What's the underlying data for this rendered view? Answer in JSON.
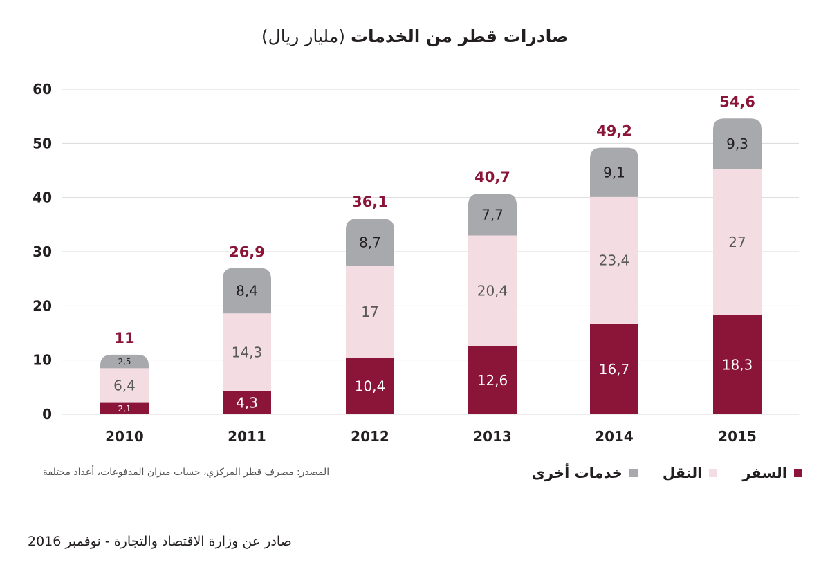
{
  "chart_data": {
    "type": "bar",
    "stacked": true,
    "title": "صادرات قطر من الخدمات",
    "title_unit": "(مليار ريال)",
    "categories": [
      "2010",
      "2011",
      "2012",
      "2013",
      "2014",
      "2015"
    ],
    "series": [
      {
        "name": "السفر",
        "color": "#8b1538",
        "values": [
          2.1,
          4.3,
          10.4,
          12.6,
          16.7,
          18.3
        ],
        "labels": [
          "2,1",
          "4,3",
          "10,4",
          "12,6",
          "16,7",
          "18,3"
        ]
      },
      {
        "name": "النقل",
        "color": "#f3dde3",
        "values": [
          6.4,
          14.3,
          17,
          20.4,
          23.4,
          27
        ],
        "labels": [
          "6,4",
          "14,3",
          "17",
          "20,4",
          "23,4",
          "27"
        ]
      },
      {
        "name": "خدمات أخرى",
        "color": "#a7a9ac",
        "values": [
          2.5,
          8.4,
          8.7,
          7.7,
          9.1,
          9.3
        ],
        "labels": [
          "2,5",
          "8,4",
          "8,7",
          "7,7",
          "9,1",
          "9,3"
        ]
      }
    ],
    "totals": [
      11,
      26.9,
      36.1,
      40.7,
      49.2,
      54.6
    ],
    "total_labels": [
      "11",
      "26,9",
      "36,1",
      "40,7",
      "49,2",
      "54,6"
    ],
    "ylim": [
      0,
      60
    ],
    "yticks": [
      "0",
      "10",
      "20",
      "30",
      "40",
      "50",
      "60"
    ],
    "grid": true,
    "legend_position": "bottom-right",
    "total_color": "#8b1538"
  },
  "source_text": "المصدر: مصرف قطر المركزي، حساب ميزان المدفوعات، أعداد مختلفة",
  "footer_text": "صادر عن وزارة الاقتصاد والتجارة - نوفمبر 2016"
}
